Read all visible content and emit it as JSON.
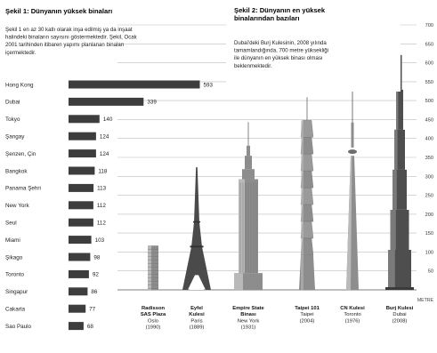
{
  "section1": {
    "title": "Şekil 1: Dünyanın yüksek binaları",
    "desc": [
      "Şekil 1 en az 30 katlı olarak inşa edilmiş ya da inşaat",
      "halindeki binaların sayısını göstermektedir. Şekil, Ocak",
      "2001 tarihinden itibaren yapımı planlanan binaları",
      "içermektedir."
    ]
  },
  "section2": {
    "title": [
      "Şekil 2: Dünyanın en yüksek",
      "binalarından bazıları"
    ],
    "desc": [
      "Dubai'deki Burj Kulesinin, 2008 yılında",
      "tamamlandığında, 700 metre yüksekliği",
      "ile dünyanın en yüksek binası olması",
      "beklenmektedir."
    ]
  },
  "axis_unit": "METRE",
  "colors": {
    "bar": "#3d3d3d",
    "building": "#8a8a8a",
    "grid": "#bdbdbd"
  },
  "chart_data": [
    {
      "type": "bar",
      "orientation": "horizontal",
      "categories": [
        "Hong Kong",
        "Dubai",
        "Tokyo",
        "Şangay",
        "Şenzen, Çin",
        "Bangkok",
        "Panama Şehri",
        "New York",
        "Seul",
        "Miami",
        "Şikago",
        "Toronto",
        "Singapur",
        "Cakarta",
        "Sao Paulo"
      ],
      "values": [
        593,
        339,
        140,
        124,
        124,
        118,
        113,
        112,
        112,
        103,
        98,
        92,
        86,
        77,
        68
      ],
      "title": "Şekil 1: Dünyanın yüksek binaları"
    },
    {
      "type": "bar",
      "title": "Şekil 2: Dünyanın en yüksek binalarından bazıları",
      "ylabel": "METRE",
      "ylim": [
        0,
        700
      ],
      "yticks": [
        50,
        100,
        150,
        200,
        250,
        300,
        350,
        400,
        450,
        500,
        550,
        600,
        650,
        700
      ],
      "grid": true,
      "buildings": [
        {
          "name": [
            "Radisson",
            "SAS Plaza"
          ],
          "city": "Oslo",
          "year": "(1990)",
          "height": 117
        },
        {
          "name": [
            "Eyfel",
            "Kulesi"
          ],
          "city": "Paris",
          "year": "(1889)",
          "height": 324
        },
        {
          "name": [
            "Empire State",
            "Binası"
          ],
          "city": "New York",
          "year": "(1931)",
          "height": 443
        },
        {
          "name": [
            "Taipei 101"
          ],
          "city": "Taipei",
          "year": "(2004)",
          "height": 509
        },
        {
          "name": [
            "CN Kulesi"
          ],
          "city": "Toronto",
          "year": "(1976)",
          "height": 553
        },
        {
          "name": [
            "Burj Kulesi"
          ],
          "city": "Dubai",
          "year": "(2008)",
          "height": 705
        }
      ]
    }
  ]
}
